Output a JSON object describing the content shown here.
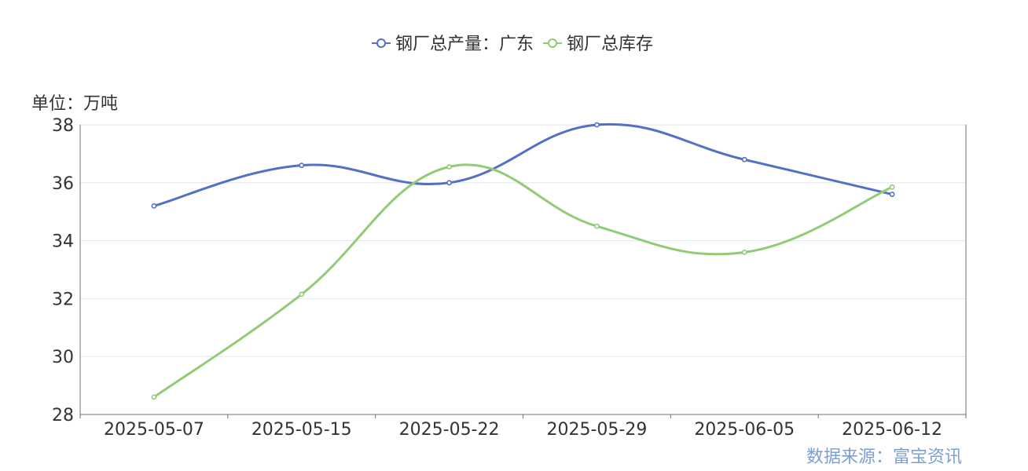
{
  "unit_label": "单位：万吨",
  "source_label": "数据来源：富宝资讯",
  "chart_data": {
    "type": "line",
    "title": "",
    "xlabel": "",
    "ylabel": "",
    "categories": [
      "2025-05-07",
      "2025-05-15",
      "2025-05-22",
      "2025-05-29",
      "2025-06-05",
      "2025-06-12"
    ],
    "ylim": [
      28,
      38
    ],
    "yticks": [
      28,
      30,
      32,
      34,
      36,
      38
    ],
    "grid": true,
    "smooth": true,
    "legend_position": "top-center",
    "series": [
      {
        "name": "钢厂总产量：广东",
        "color": "#5470c6",
        "values": [
          35.2,
          36.6,
          36.0,
          38.0,
          36.8,
          35.6
        ]
      },
      {
        "name": "钢厂总库存",
        "color": "#91cc75",
        "values": [
          28.6,
          32.15,
          36.55,
          34.5,
          33.6,
          35.85
        ]
      }
    ]
  }
}
